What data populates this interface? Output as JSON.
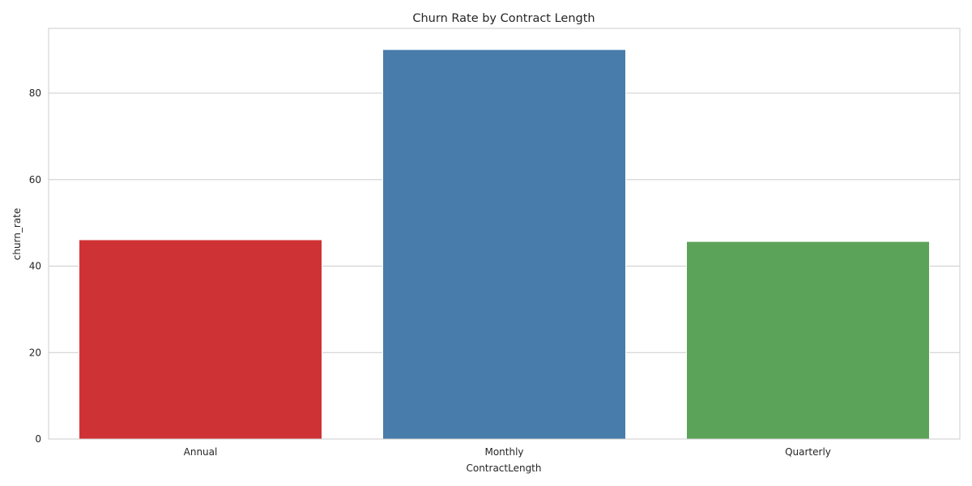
{
  "chart_data": {
    "type": "bar",
    "title": "Churn Rate by Contract Length",
    "xlabel": "ContractLength",
    "ylabel": "churn_rate",
    "categories": [
      "Annual",
      "Monthly",
      "Quarterly"
    ],
    "values": [
      46.1,
      90.1,
      45.7
    ],
    "colors": [
      "#cf3235",
      "#477cab",
      "#5ba358"
    ],
    "ylim": [
      0,
      95
    ],
    "yticks": [
      0,
      20,
      40,
      60,
      80
    ],
    "grid": true,
    "legend": "none"
  }
}
